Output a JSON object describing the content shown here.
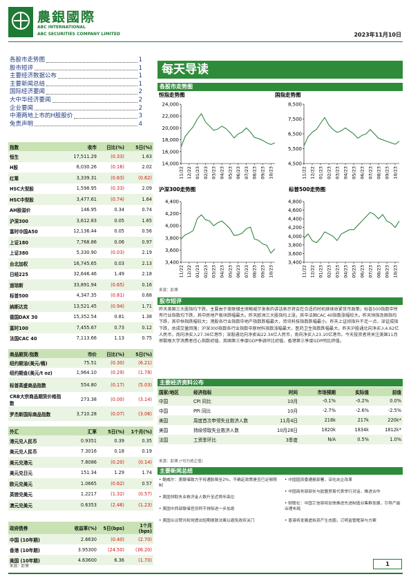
{
  "header": {
    "logo": "農銀國際",
    "company_en": "ABC INTERNATIONAL",
    "company_full": "ABC SECURITIES COMPANY LIMITED",
    "date": "2023年11月10日"
  },
  "toc": [
    {
      "title": "各股市走势图",
      "page": "1"
    },
    {
      "title": "股市短评",
      "page": "1"
    },
    {
      "title": "主要经济数据公布",
      "page": "1"
    },
    {
      "title": "主要新闻总结",
      "page": "1"
    },
    {
      "title": "国际经济要闻",
      "page": "2"
    },
    {
      "title": "大中华经济要闻",
      "page": "2"
    },
    {
      "title": "企业要闻",
      "page": "2"
    },
    {
      "title": "中港两地上市的H股股价",
      "page": "3"
    },
    {
      "title": "免责声明",
      "page": "4"
    }
  ],
  "title": "每天导读",
  "market_section": "各股市走势图",
  "chart_data": [
    {
      "type": "line",
      "title": "恒指走势图",
      "color": "#1b7a2e",
      "categories": [
        "11/22",
        null,
        "12/22",
        null,
        "01/23",
        null,
        "02/23",
        null,
        "03/23",
        null,
        "04/23",
        null,
        "05/23",
        null,
        "06/23",
        null,
        "07/23",
        null,
        "08/23",
        null,
        "09/23",
        null,
        "10/23",
        null
      ],
      "values": [
        16800,
        18500,
        19400,
        20200,
        21500,
        22400,
        21000,
        20300,
        19600,
        19800,
        20300,
        19900,
        19200,
        18300,
        19000,
        19300,
        20000,
        19300,
        18400,
        18200,
        17900,
        17500,
        17200,
        17500
      ],
      "ylim": [
        14000,
        24000
      ],
      "yticks": [
        {
          "value": 14000,
          "label": "14,000"
        },
        {
          "value": 16000,
          "label": "16,000"
        },
        {
          "value": 18000,
          "label": "18,000"
        },
        {
          "value": 20000,
          "label": "20,000"
        },
        {
          "value": 22000,
          "label": "22,000"
        },
        {
          "value": 24000,
          "label": "24,000"
        }
      ]
    },
    {
      "type": "line",
      "title": "国指走势图",
      "color": "#1b7a2e",
      "categories": [
        "11/22",
        null,
        "12/22",
        null,
        "01/23",
        null,
        "02/23",
        null,
        "03/23",
        null,
        "04/23",
        null,
        "05/23",
        null,
        "06/23",
        null,
        "07/23",
        null,
        "08/23",
        null,
        "09/23",
        null,
        "10/23",
        null
      ],
      "values": [
        5700,
        6300,
        6600,
        6800,
        7200,
        7600,
        7100,
        6800,
        6600,
        6700,
        6900,
        6700,
        6500,
        6200,
        6400,
        6500,
        6800,
        6500,
        6200,
        6100,
        6000,
        5900,
        5800,
        6000
      ],
      "ylim": [
        4500,
        8500
      ],
      "yticks": [
        {
          "value": 4500,
          "label": "4,500"
        },
        {
          "value": 5500,
          "label": "5,500"
        },
        {
          "value": 6500,
          "label": "6,500"
        },
        {
          "value": 7500,
          "label": "7,500"
        },
        {
          "value": 8500,
          "label": "8,500"
        }
      ]
    },
    {
      "type": "line",
      "title": "沪深300走势图",
      "color": "#1b7a2e",
      "categories": [
        "11/22",
        null,
        "12/22",
        null,
        "01/23",
        null,
        "02/23",
        null,
        "03/23",
        null,
        "04/23",
        null,
        "05/23",
        null,
        "06/23",
        null,
        "07/23",
        null,
        "08/23",
        null,
        "09/23",
        null,
        "10/23",
        null
      ],
      "values": [
        3780,
        3850,
        3880,
        3920,
        4120,
        4180,
        4100,
        4080,
        4000,
        4050,
        4080,
        4020,
        3950,
        3840,
        3850,
        3880,
        3950,
        3980,
        3780,
        3760,
        3700,
        3680,
        3550,
        3620
      ],
      "ylim": [
        3400,
        4400
      ],
      "yticks": [
        {
          "value": 3400,
          "label": "3,400"
        },
        {
          "value": 3600,
          "label": "3,600"
        },
        {
          "value": 3800,
          "label": "3,800"
        },
        {
          "value": 4000,
          "label": "4,000"
        },
        {
          "value": 4200,
          "label": "4,200"
        },
        {
          "value": 4400,
          "label": "4,400"
        }
      ]
    },
    {
      "type": "line",
      "title": "标普500走势图",
      "color": "#1b7a2e",
      "categories": [
        "11/22",
        null,
        "12/22",
        null,
        "01/23",
        null,
        "02/23",
        null,
        "03/23",
        null,
        "04/23",
        null,
        "05/23",
        null,
        "06/23",
        null,
        "07/23",
        null,
        "08/23",
        null,
        "09/23",
        null,
        "10/23",
        null
      ],
      "values": [
        3950,
        4050,
        3900,
        3850,
        3950,
        4100,
        4050,
        4000,
        3900,
        4050,
        4100,
        4150,
        4150,
        4250,
        4350,
        4450,
        4550,
        4500,
        4400,
        4500,
        4350,
        4300,
        4200,
        4350
      ],
      "ylim": [
        3400,
        4800
      ],
      "yticks": [
        {
          "value": 3400,
          "label": "3,400"
        },
        {
          "value": 3600,
          "label": "3,600"
        },
        {
          "value": 3800,
          "label": "3,800"
        },
        {
          "value": 4000,
          "label": "4,000"
        },
        {
          "value": 4200,
          "label": "4,200"
        },
        {
          "value": 4400,
          "label": "4,400"
        },
        {
          "value": 4600,
          "label": "4,600"
        },
        {
          "value": 4800,
          "label": "4,800"
        }
      ]
    }
  ],
  "chart_source": "来源：彭博",
  "index_table": {
    "columns": [
      "指数",
      "收市",
      "日比(%)",
      "5日(%)"
    ],
    "rows": [
      [
        "恒生",
        "17,511.29",
        "(0.33)",
        "1.63"
      ],
      [
        "H股",
        "6,030.26",
        "(0.16)",
        "2.02"
      ],
      [
        "红筹",
        "3,339.31",
        "(0.63)",
        "(0.62)"
      ],
      [
        "HSC大型股",
        "1,598.95",
        "(0.33)",
        "2.09"
      ],
      [
        "HSC中型股",
        "3,477.61",
        "(0.74)",
        "1.64"
      ],
      [
        "AH股溢价",
        "146.95",
        "0.34",
        "0.74"
      ],
      [
        "沪深300",
        "3,612.83",
        "0.05",
        "1.65"
      ],
      [
        "富时中国A50",
        "12,136.44",
        "0.05",
        "0.56"
      ],
      [
        "上证180",
        "7,768.86",
        "0.06",
        "0.97"
      ],
      [
        "上证380",
        "5,330.90",
        "(0.03)",
        "2.19"
      ],
      [
        "台北加权",
        "16,745.65",
        "0.03",
        "2.13"
      ],
      [
        "日经225",
        "32,646.46",
        "1.49",
        "2.18"
      ],
      [
        "道琼斯",
        "33,891.94",
        "(0.65)",
        "0.16"
      ],
      [
        "标普500",
        "4,347.35",
        "(0.81)",
        "0.68"
      ],
      [
        "纳斯达克",
        "13,521.45",
        "(0.94)",
        "1.71"
      ],
      [
        "德国DAX 30",
        "15,352.54",
        "0.81",
        "1.38"
      ],
      [
        "富时100",
        "7,455.67",
        "0.73",
        "0.12"
      ],
      [
        "法国CAC 40",
        "7,113.66",
        "1.13",
        "0.75"
      ]
    ]
  },
  "commodity_table": {
    "columns": [
      "商品期货/指数",
      "市价",
      "日比(%)",
      "5日(%)"
    ],
    "rows": [
      [
        "纽约期油(美元/桶)",
        "75.51",
        "(0.30)",
        "(6.21)"
      ],
      [
        "纽约期金(美元/t oz)",
        "1,964.10",
        "(0.29)",
        "(1.78)"
      ],
      [
        "标普高盛商品指数",
        "554.80",
        "(0.17)",
        "(5.03)"
      ],
      [
        "CRB大宗商品期货价格指数",
        "273.38",
        "(0.00)",
        "(3.14)"
      ],
      [
        "罗杰斯国际商品指数",
        "3,710.28",
        "(0.07)",
        "(3.06)"
      ]
    ]
  },
  "fx_table": {
    "columns": [
      "外汇",
      "汇率",
      "5日(%)",
      "1个月(%)"
    ],
    "rows": [
      [
        "港元兑人民币",
        "0.9351",
        "0.39",
        "0.35"
      ],
      [
        "美元兑人民币",
        "7.3016",
        "0.18",
        "0.19"
      ],
      [
        "美元兑港元",
        "7.8086",
        "(0.20)",
        "(0.14)"
      ],
      [
        "美元兑日元",
        "151.34",
        "1.29",
        "1.74"
      ],
      [
        "欧元兑美元",
        "1.0665",
        "(0.62)",
        "0.57"
      ],
      [
        "英镑兑美元",
        "1.2217",
        "(1.32)",
        "(0.57)"
      ],
      [
        "澳元兑美元",
        "0.6353",
        "(2.46)",
        "(1.23)"
      ]
    ]
  },
  "bond_table": {
    "columns": [
      "政府债券",
      "收益率(%)",
      "5日(bps)",
      "1个月(bps)"
    ],
    "rows": [
      [
        "中国 (10年期)",
        "2.6630",
        "(0.40)",
        "(2.70)"
      ],
      [
        "香港 (10年期)",
        "3.95300",
        "(24.50)",
        "(36.20)"
      ],
      [
        "美国 (10年期)",
        "4.63600",
        "6.36",
        "(1.70)"
      ]
    ]
  },
  "table_source": "来源：彭博",
  "commentary": {
    "heading": "股市短评",
    "text": "昨天美国三大股指均下跌，主要由于美联储主席鲍威尔发表的讲话表示将会在合适的时机继续收紧货币政策；标普500指数中所有行业指数均下跌，其中房地产板块跌幅最大。昨天欧洲三大股指均上涨，其中法国CAC 40指数涨幅较大。昨天恒指及国指均下跌，其中恒指跌幅较大；港股各行业指数中地产指数跌幅最大，资讯科技指数跌幅最小。昨天上证综指升不足一点，深证成指下跌，总成交量回落；沪深300指数各行业指数中原材料指数涨幅最大，医药卫生指数跌幅最大。昨天沪股通北向净买入4.62亿人民币，南向净买入27.36亿港币；深股通北向净卖出22.34亿人民币，南向净买入23.10亿港币。今天投资者将关注美国11月密歇根大学消费者信心指数初值、英国第三季度GDP季调环比初值、香港第三季度GDP同比终值。"
  },
  "econ": {
    "heading": "主要经济资料公布",
    "columns": [
      "国家/地区",
      "经济指标",
      "时间",
      "市场预期",
      "实际值",
      "前值"
    ],
    "rows": [
      [
        "中国",
        "CPI 同比",
        "10月",
        "-0.1%",
        "-0.2%",
        "0.0%"
      ],
      [
        "中国",
        "PPI 同比",
        "10月",
        "-2.7%",
        "-2.6%",
        "-2.5%"
      ],
      [
        "美国",
        "周度首次申领失业救济人数",
        "11月4日",
        "218k",
        "217k",
        "220k*"
      ],
      [
        "美国",
        "持续领取失业救济人数",
        "10月28日",
        "1820k",
        "1834k",
        "1812k*"
      ],
      [
        "法国",
        "工资季环比",
        "3季度",
        "N/A",
        "0.5%",
        "1.0%"
      ]
    ],
    "source": "来源：彭博 (*均为修正值)"
  },
  "news": {
    "heading": "主要新闻总结",
    "left": [
      "• 鲍威尔：美联储致力于将通胀降至2%，不确定政策是否已足够限制",
      "• 美国领取失业救济金人数升至近两年高位",
      "• 美国中西部联储官员称不排除进一步加息",
      "• 美国众议院共和党提出短期拨款法案以避免政府关门"
    ],
    "right": [
      "• 中国国资委通报部署，深化央企改革",
      "• 中国商务部部长与欧盟贸易代表举行对话，推进合作",
      "• 财联社：中国工信部将加快推进先进制造业集群发展，引导产能合理布局",
      "• 香港将发展虚拟资产生态圈，订明监管框架与方案"
    ]
  },
  "page_number": "1"
}
